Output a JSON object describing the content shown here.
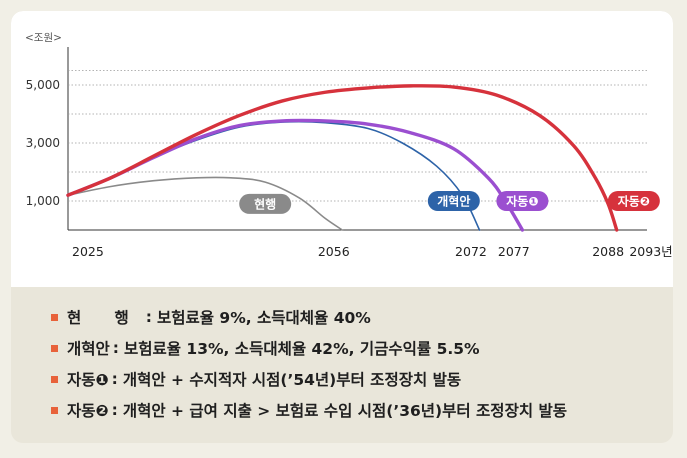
{
  "chart_data": {
    "type": "line",
    "unit_label": "<조원>",
    "yticks": [
      1000,
      3000,
      5000
    ],
    "ytick_labels": [
      "1,000",
      "3,000",
      "5,000"
    ],
    "ylim": [
      0,
      6000
    ],
    "xlim": [
      2025,
      2093
    ],
    "xtick_labels": [
      "2025",
      "2056",
      "2072",
      "2077",
      "2088",
      "2093년"
    ],
    "xtick_values": [
      2025,
      2056,
      2072,
      2077,
      2088,
      2093
    ],
    "grid": true,
    "series": [
      {
        "name": "현행",
        "color": "#8a8a8a",
        "label_at": [
          2048,
          900
        ],
        "points": [
          [
            2025,
            1200
          ],
          [
            2030,
            1500
          ],
          [
            2035,
            1700
          ],
          [
            2040,
            1800
          ],
          [
            2044,
            1800
          ],
          [
            2048,
            1650
          ],
          [
            2052,
            1100
          ],
          [
            2055,
            400
          ],
          [
            2057,
            0
          ]
        ]
      },
      {
        "name": "개혁안",
        "color": "#2d63a8",
        "label_at": [
          2070,
          1000
        ],
        "points": [
          [
            2025,
            1200
          ],
          [
            2030,
            1800
          ],
          [
            2035,
            2500
          ],
          [
            2040,
            3100
          ],
          [
            2045,
            3550
          ],
          [
            2050,
            3720
          ],
          [
            2055,
            3700
          ],
          [
            2060,
            3500
          ],
          [
            2064,
            3000
          ],
          [
            2068,
            2200
          ],
          [
            2071,
            1200
          ],
          [
            2073,
            0
          ]
        ]
      },
      {
        "name": "자동❶",
        "color": "#9b4fd0",
        "label_at": [
          2078,
          1000
        ],
        "points": [
          [
            2025,
            1200
          ],
          [
            2030,
            1800
          ],
          [
            2035,
            2500
          ],
          [
            2040,
            3150
          ],
          [
            2045,
            3600
          ],
          [
            2050,
            3760
          ],
          [
            2055,
            3760
          ],
          [
            2060,
            3650
          ],
          [
            2065,
            3350
          ],
          [
            2070,
            2800
          ],
          [
            2074,
            1800
          ],
          [
            2076,
            1000
          ],
          [
            2078,
            0
          ]
        ]
      },
      {
        "name": "자동❷",
        "color": "#d6323c",
        "label_at": [
          2091,
          1000
        ],
        "points": [
          [
            2025,
            1200
          ],
          [
            2030,
            1800
          ],
          [
            2035,
            2550
          ],
          [
            2040,
            3300
          ],
          [
            2045,
            3950
          ],
          [
            2050,
            4450
          ],
          [
            2055,
            4750
          ],
          [
            2060,
            4900
          ],
          [
            2065,
            4970
          ],
          [
            2070,
            4930
          ],
          [
            2075,
            4650
          ],
          [
            2080,
            3950
          ],
          [
            2084,
            2900
          ],
          [
            2086.5,
            1800
          ],
          [
            2088,
            900
          ],
          [
            2089,
            0
          ]
        ]
      }
    ]
  },
  "legend": [
    {
      "name": "현 행",
      "desc": "보험료율 9%, 소득대체율 40%"
    },
    {
      "name": "개혁안",
      "desc": "보험료율 13%, 소득대체율 42%, 기금수익률 5.5%"
    },
    {
      "name": "자동❶",
      "desc": "개혁안 + 수지적자 시점(’54년)부터 조정장치 발동"
    },
    {
      "name": "자동❷",
      "desc": "개혁안 + 급여 지출 > 보험료 수입 시점(’36년)부터 조정장치 발동"
    }
  ]
}
